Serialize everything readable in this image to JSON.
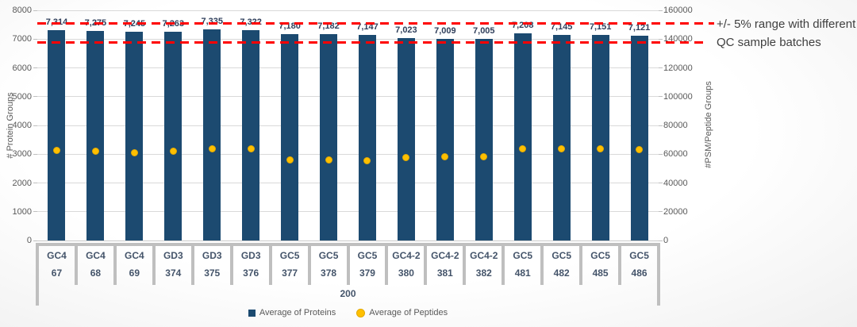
{
  "chart_data": {
    "type": "combo",
    "categories": [
      {
        "line1": "GC4",
        "line2": "67"
      },
      {
        "line1": "GC4",
        "line2": "68"
      },
      {
        "line1": "GC4",
        "line2": "69"
      },
      {
        "line1": "GD3",
        "line2": "374"
      },
      {
        "line1": "GD3",
        "line2": "375"
      },
      {
        "line1": "GD3",
        "line2": "376"
      },
      {
        "line1": "GC5",
        "line2": "377"
      },
      {
        "line1": "GC5",
        "line2": "378"
      },
      {
        "line1": "GC5",
        "line2": "379"
      },
      {
        "line1": "GC4-2",
        "line2": "380"
      },
      {
        "line1": "GC4-2",
        "line2": "381"
      },
      {
        "line1": "GC4-2",
        "line2": "382"
      },
      {
        "line1": "GC5",
        "line2": "481"
      },
      {
        "line1": "GC5",
        "line2": "482"
      },
      {
        "line1": "GC5",
        "line2": "485"
      },
      {
        "line1": "GC5",
        "line2": "486"
      }
    ],
    "group_label": "200",
    "series": [
      {
        "name": "Average of Proteins",
        "type": "bar",
        "axis": "left",
        "color": "#1c4a70",
        "values": [
          7314,
          7275,
          7245,
          7263,
          7335,
          7322,
          7180,
          7182,
          7147,
          7023,
          7009,
          7005,
          7208,
          7145,
          7151,
          7121
        ],
        "labels": [
          "7,314",
          "7,275",
          "7,245",
          "7,263",
          "7,335",
          "7,322",
          "7,180",
          "7,182",
          "7,147",
          "7,023",
          "7,009",
          "7,005",
          "7,208",
          "7,145",
          "7,151",
          "7,121"
        ]
      },
      {
        "name": "Average of Peptides",
        "type": "scatter",
        "axis": "right",
        "color": "#ffc000",
        "values": [
          62500,
          62000,
          61000,
          62000,
          63500,
          63500,
          56000,
          56000,
          55500,
          57500,
          58000,
          58000,
          64000,
          63500,
          63500,
          63000
        ]
      }
    ],
    "left_axis": {
      "title": "# Protein Groups",
      "min": 0,
      "max": 8000,
      "ticks": [
        0,
        1000,
        2000,
        3000,
        4000,
        5000,
        6000,
        7000,
        8000
      ]
    },
    "right_axis": {
      "title": "#PSM/Peptide Groups",
      "min": 0,
      "max": 160000,
      "ticks": [
        0,
        20000,
        40000,
        60000,
        80000,
        100000,
        120000,
        140000,
        160000
      ]
    },
    "reference_lines": [
      {
        "value": 7550,
        "color": "#ff0000",
        "style": "dashed"
      },
      {
        "value": 6890,
        "color": "#ff0000",
        "style": "dashed"
      }
    ],
    "annotation": {
      "line1": "+/- 5% range with different",
      "line2": "QC sample batches"
    },
    "grid": true,
    "legend_position": "bottom"
  },
  "colors": {
    "grid": "#d9d9d9",
    "axis_text": "#595959",
    "category_text": "#44546a",
    "bar_label_text": "#31405c",
    "category_border": "#bfbfbf"
  }
}
